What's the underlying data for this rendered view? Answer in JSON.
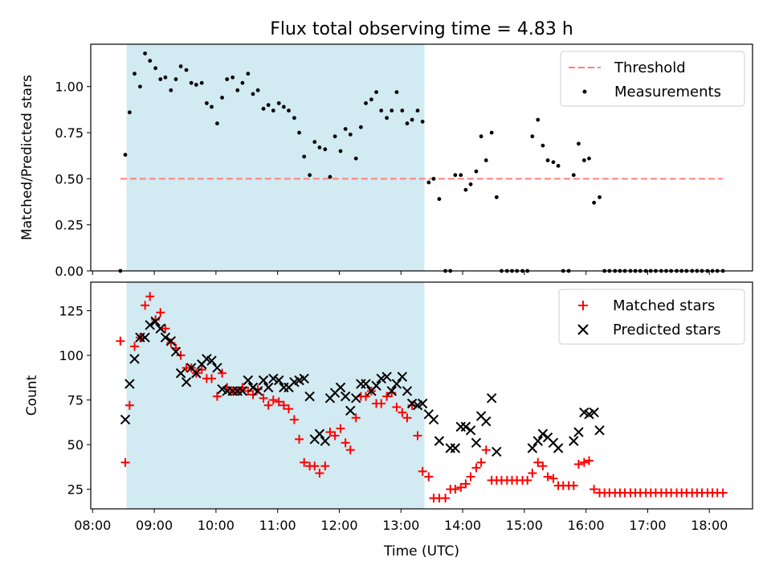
{
  "colors": {
    "shade": "#add8e6",
    "threshold": "#ff7f7f",
    "measurement": "#000000",
    "matched": "#ff0000",
    "predicted": "#000000"
  },
  "chart_data": [
    {
      "type": "scatter",
      "title": "Flux total observing time = 4.83 h",
      "ylabel": "Matched/Predicted stars",
      "xlim": [
        7.97,
        18.7
      ],
      "ylim": [
        0.0,
        1.23
      ],
      "yticks": [
        "0.00",
        "0.25",
        "0.50",
        "0.75",
        "1.00"
      ],
      "ytick_values": [
        0.0,
        0.25,
        0.5,
        0.75,
        1.0
      ],
      "shaded_span": [
        8.55,
        13.38
      ],
      "legend_position": "upper right",
      "threshold": {
        "name": "Threshold",
        "y": 0.5,
        "x": [
          8.45,
          18.22
        ]
      },
      "measurements": {
        "name": "Measurements",
        "x": [
          8.45,
          8.53,
          8.6,
          8.68,
          8.77,
          8.85,
          8.93,
          9.02,
          9.1,
          9.18,
          9.27,
          9.35,
          9.43,
          9.52,
          9.6,
          9.68,
          9.77,
          9.85,
          9.93,
          10.02,
          10.1,
          10.18,
          10.27,
          10.35,
          10.43,
          10.52,
          10.6,
          10.68,
          10.77,
          10.85,
          10.93,
          11.02,
          11.1,
          11.18,
          11.27,
          11.35,
          11.43,
          11.52,
          11.6,
          11.68,
          11.77,
          11.85,
          11.93,
          12.02,
          12.1,
          12.18,
          12.27,
          12.35,
          12.43,
          12.52,
          12.6,
          12.68,
          12.77,
          12.85,
          12.93,
          13.02,
          13.1,
          13.18,
          13.27,
          13.35,
          13.45,
          13.53,
          13.62,
          13.72,
          13.8,
          13.88,
          13.97,
          14.05,
          14.13,
          14.22,
          14.3,
          14.38,
          14.47,
          14.55,
          14.63,
          14.72,
          14.8,
          14.88,
          14.97,
          15.05,
          15.13,
          15.22,
          15.3,
          15.38,
          15.47,
          15.55,
          15.63,
          15.72,
          15.8,
          15.88,
          15.97,
          16.05,
          16.13,
          16.22,
          16.3,
          16.38,
          16.47,
          16.55,
          16.63,
          16.72,
          16.8,
          16.88,
          16.97,
          17.05,
          17.13,
          17.22,
          17.3,
          17.38,
          17.47,
          17.55,
          17.63,
          17.72,
          17.8,
          17.88,
          17.97,
          18.05,
          18.13,
          18.22
        ],
        "y": [
          0.0,
          0.63,
          0.86,
          1.07,
          1.0,
          1.18,
          1.14,
          1.1,
          1.04,
          1.05,
          0.98,
          1.04,
          1.11,
          1.09,
          1.02,
          1.01,
          1.02,
          0.91,
          0.89,
          0.8,
          0.94,
          1.04,
          1.05,
          0.98,
          1.02,
          1.07,
          0.96,
          0.98,
          0.88,
          0.9,
          0.87,
          0.91,
          0.89,
          0.87,
          0.83,
          0.75,
          0.62,
          0.52,
          0.7,
          0.67,
          0.66,
          0.51,
          0.73,
          0.65,
          0.77,
          0.74,
          0.61,
          0.78,
          0.91,
          0.93,
          0.97,
          0.87,
          0.83,
          0.87,
          0.97,
          0.87,
          0.8,
          0.82,
          0.87,
          0.81,
          0.48,
          0.5,
          0.39,
          0.0,
          0.0,
          0.52,
          0.52,
          0.44,
          0.47,
          0.54,
          0.73,
          0.6,
          0.75,
          0.4,
          0.0,
          0.0,
          0.0,
          0.0,
          0.0,
          0.0,
          0.73,
          0.82,
          0.68,
          0.6,
          0.59,
          0.57,
          0.0,
          0.0,
          0.52,
          0.69,
          0.6,
          0.61,
          0.37,
          0.4,
          0.0,
          0.0,
          0.0,
          0.0,
          0.0,
          0.0,
          0.0,
          0.0,
          0.0,
          0.0,
          0.0,
          0.0,
          0.0,
          0.0,
          0.0,
          0.0,
          0.0,
          0.0,
          0.0,
          0.0,
          0.0,
          0.0,
          0.0,
          0.0
        ]
      }
    },
    {
      "type": "scatter",
      "xlabel": "Time (UTC)",
      "ylabel": "Count",
      "xlim": [
        7.97,
        18.7
      ],
      "ylim": [
        14,
        141
      ],
      "yticks": [
        "25",
        "50",
        "75",
        "100",
        "125"
      ],
      "ytick_values": [
        25,
        50,
        75,
        100,
        125
      ],
      "xticks": [
        "08:00",
        "09:00",
        "10:00",
        "11:00",
        "12:00",
        "13:00",
        "14:00",
        "15:00",
        "16:00",
        "17:00",
        "18:00"
      ],
      "xtick_values": [
        8,
        9,
        10,
        11,
        12,
        13,
        14,
        15,
        16,
        17,
        18
      ],
      "shaded_span": [
        8.55,
        13.38
      ],
      "legend_position": "upper right",
      "series": [
        {
          "name": "Matched stars",
          "marker": "plus",
          "x": [
            8.45,
            8.53,
            8.6,
            8.68,
            8.77,
            8.85,
            8.93,
            9.02,
            9.1,
            9.18,
            9.27,
            9.35,
            9.43,
            9.52,
            9.6,
            9.68,
            9.77,
            9.85,
            9.93,
            10.02,
            10.1,
            10.18,
            10.27,
            10.35,
            10.43,
            10.52,
            10.6,
            10.68,
            10.77,
            10.85,
            10.93,
            11.02,
            11.1,
            11.18,
            11.27,
            11.35,
            11.43,
            11.52,
            11.6,
            11.68,
            11.77,
            11.85,
            11.93,
            12.02,
            12.1,
            12.18,
            12.27,
            12.35,
            12.43,
            12.52,
            12.6,
            12.68,
            12.77,
            12.85,
            12.93,
            13.02,
            13.1,
            13.18,
            13.27,
            13.35,
            13.45,
            13.53,
            13.62,
            13.72,
            13.8,
            13.88,
            13.97,
            14.05,
            14.13,
            14.22,
            14.3,
            14.38,
            14.47,
            14.55,
            14.63,
            14.72,
            14.8,
            14.88,
            14.97,
            15.05,
            15.13,
            15.22,
            15.3,
            15.38,
            15.47,
            15.55,
            15.63,
            15.72,
            15.8,
            15.88,
            15.97,
            16.05,
            16.13,
            16.22,
            16.3,
            16.38,
            16.47,
            16.55,
            16.63,
            16.72,
            16.8,
            16.88,
            16.97,
            17.05,
            17.13,
            17.22,
            17.3,
            17.38,
            17.47,
            17.55,
            17.63,
            17.72,
            17.8,
            17.88,
            17.97,
            18.05,
            18.13,
            18.22
          ],
          "y": [
            108,
            40,
            72,
            105,
            110,
            128,
            133,
            120,
            124,
            115,
            107,
            104,
            100,
            93,
            93,
            90,
            92,
            87,
            87,
            77,
            90,
            82,
            80,
            80,
            82,
            80,
            78,
            81,
            76,
            72,
            75,
            74,
            72,
            70,
            64,
            53,
            40,
            38,
            38,
            34,
            38,
            57,
            55,
            59,
            51,
            47,
            65,
            77,
            77,
            80,
            73,
            73,
            77,
            79,
            71,
            68,
            65,
            72,
            55,
            35,
            32,
            20,
            20,
            20,
            25,
            25,
            26,
            28,
            32,
            37,
            40,
            47,
            30,
            30,
            30,
            30,
            30,
            30,
            30,
            30,
            34,
            40,
            38,
            32,
            31,
            27,
            27,
            27,
            27,
            39,
            40,
            41,
            25,
            23,
            23,
            23,
            23,
            23,
            23,
            23,
            23,
            23,
            23,
            23,
            23,
            23,
            23,
            23,
            23,
            23,
            23,
            23,
            23,
            23,
            23,
            23,
            23,
            23
          ]
        },
        {
          "name": "Predicted stars",
          "marker": "x",
          "x": [
            8.53,
            8.6,
            8.68,
            8.77,
            8.85,
            8.93,
            9.02,
            9.1,
            9.18,
            9.27,
            9.35,
            9.43,
            9.52,
            9.6,
            9.68,
            9.77,
            9.85,
            9.93,
            10.02,
            10.1,
            10.18,
            10.27,
            10.35,
            10.43,
            10.52,
            10.6,
            10.68,
            10.77,
            10.85,
            10.93,
            11.02,
            11.1,
            11.18,
            11.27,
            11.35,
            11.43,
            11.52,
            11.6,
            11.68,
            11.77,
            11.85,
            11.93,
            12.02,
            12.1,
            12.18,
            12.27,
            12.35,
            12.43,
            12.52,
            12.6,
            12.68,
            12.77,
            12.85,
            12.93,
            13.02,
            13.1,
            13.18,
            13.27,
            13.35,
            13.45,
            13.53,
            13.62,
            13.8,
            13.88,
            13.97,
            14.05,
            14.13,
            14.22,
            14.3,
            14.38,
            14.47,
            14.55,
            15.13,
            15.22,
            15.3,
            15.38,
            15.47,
            15.55,
            15.8,
            15.88,
            15.97,
            16.05,
            16.13,
            16.22
          ],
          "y": [
            64,
            84,
            98,
            110,
            110,
            117,
            119,
            115,
            110,
            108,
            102,
            90,
            85,
            93,
            90,
            95,
            98,
            97,
            93,
            81,
            80,
            80,
            80,
            80,
            86,
            82,
            80,
            86,
            82,
            87,
            86,
            82,
            82,
            85,
            86,
            87,
            77,
            53,
            56,
            52,
            76,
            79,
            82,
            77,
            69,
            76,
            84,
            84,
            80,
            83,
            87,
            88,
            80,
            84,
            88,
            80,
            73,
            72,
            73,
            67,
            64,
            52,
            48,
            48,
            60,
            60,
            58,
            51,
            66,
            63,
            76,
            46,
            48,
            52,
            56,
            54,
            51,
            48,
            52,
            57,
            68,
            67,
            68,
            58
          ]
        }
      ]
    }
  ]
}
